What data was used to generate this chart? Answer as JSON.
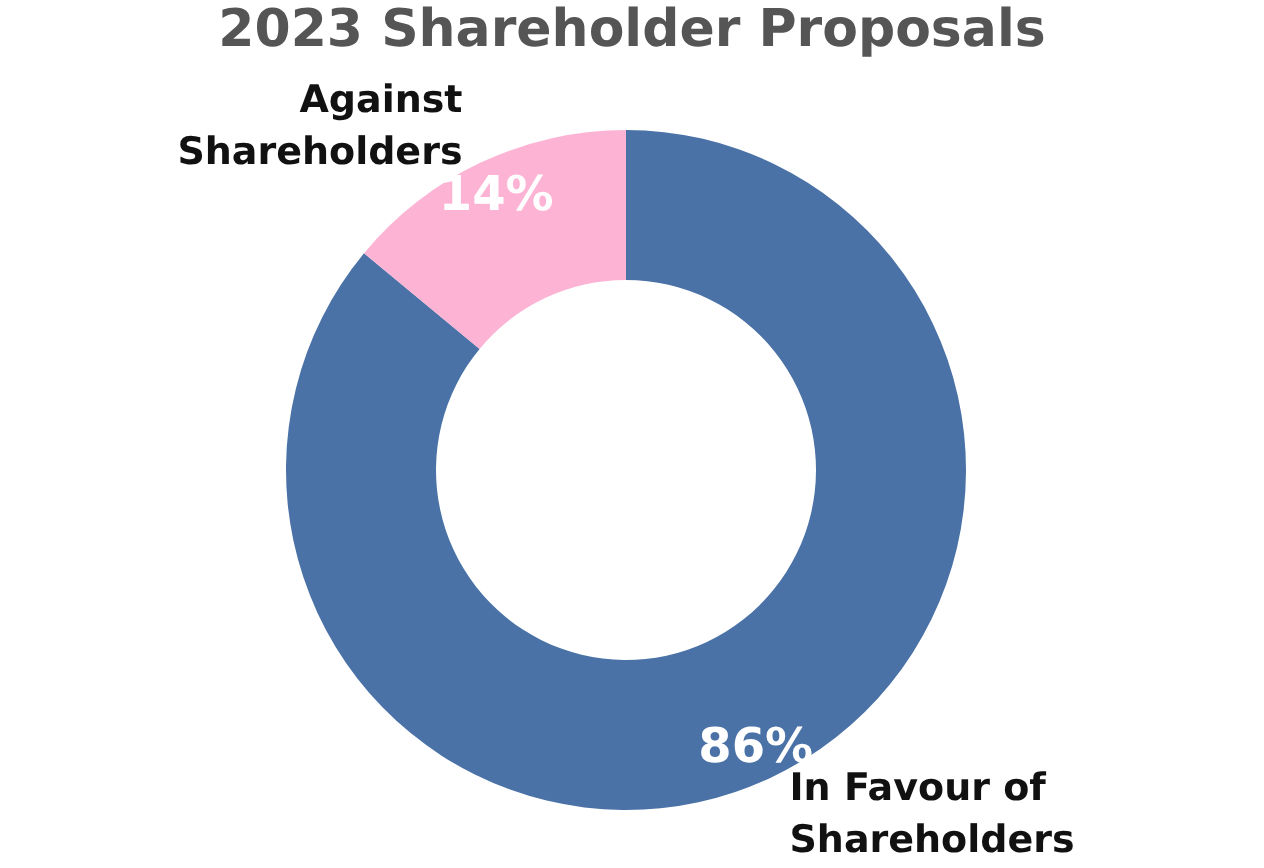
{
  "chart_data": {
    "type": "donut",
    "title": "2023 Shareholder Proposals",
    "categories": [
      "In Favour of Shareholders",
      "Against Shareholders"
    ],
    "values": [
      86,
      14
    ],
    "colors": [
      "#4a72a7",
      "#fdb4d4"
    ],
    "value_labels": [
      "86%",
      "14%"
    ]
  }
}
